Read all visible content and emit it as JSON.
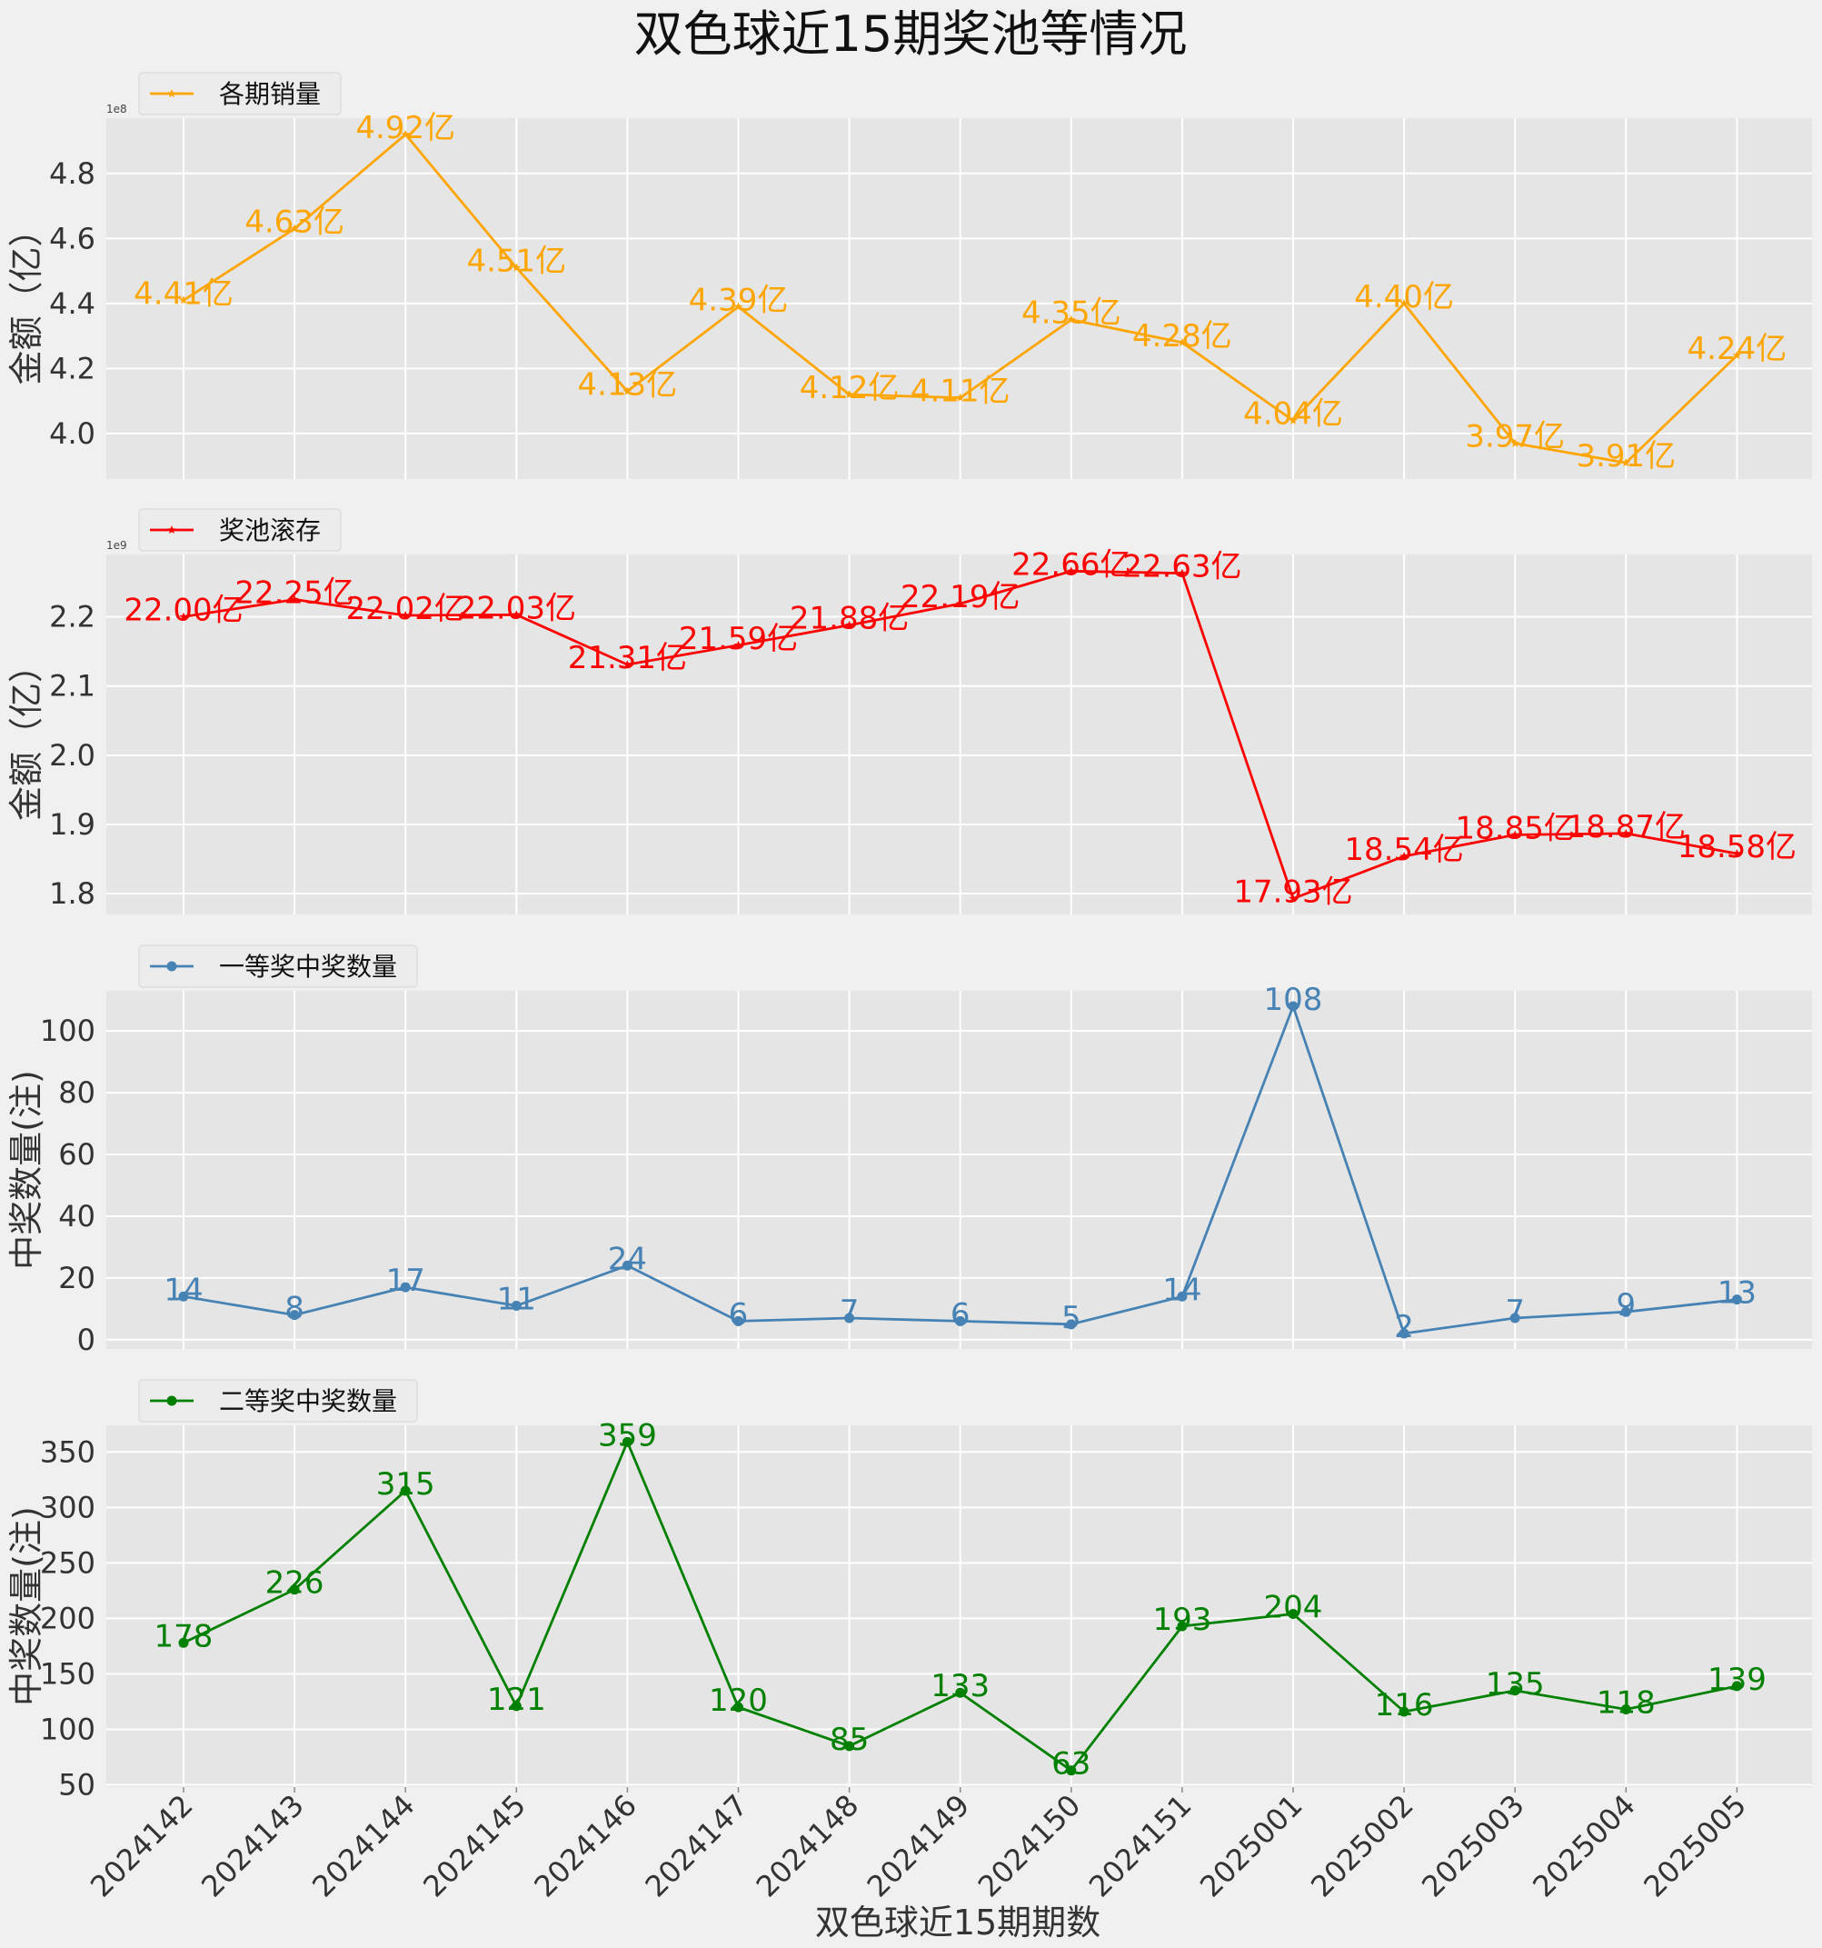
{
  "title": "双色球近15期奖池等情况",
  "xlabel": "双色球近15期期数",
  "chart_data": [
    {
      "type": "line",
      "categories": [
        "2024142",
        "2024143",
        "2024144",
        "2024145",
        "2024146",
        "2024147",
        "2024148",
        "2024149",
        "2024150",
        "2024151",
        "2025001",
        "2025002",
        "2025003",
        "2025004",
        "2025005"
      ],
      "series": [
        {
          "name": "各期销量",
          "color": "#FFA500",
          "marker": "star",
          "values": [
            441000000,
            463000000,
            492000000,
            451000000,
            413000000,
            439000000,
            412000000,
            411000000,
            435000000,
            428000000,
            404000000,
            440000000,
            397000000,
            391000000,
            424000000
          ],
          "labels": [
            "4.41亿",
            "4.63亿",
            "4.92亿",
            "4.51亿",
            "4.13亿",
            "4.39亿",
            "4.12亿",
            "4.11亿",
            "4.35亿",
            "4.28亿",
            "4.04亿",
            "4.40亿",
            "3.97亿",
            "3.91亿",
            "4.24亿"
          ]
        }
      ],
      "ylabel": "金额（亿）",
      "offset_label": "1e8",
      "ylim": [
        386000000,
        497000000
      ],
      "yticks": [
        400000000,
        420000000,
        440000000,
        460000000,
        480000000
      ],
      "ytick_labels": [
        "4.0",
        "4.2",
        "4.4",
        "4.6",
        "4.8"
      ],
      "grid": true,
      "legend": "top-left"
    },
    {
      "type": "line",
      "categories": [
        "2024142",
        "2024143",
        "2024144",
        "2024145",
        "2024146",
        "2024147",
        "2024148",
        "2024149",
        "2024150",
        "2024151",
        "2025001",
        "2025002",
        "2025003",
        "2025004",
        "2025005"
      ],
      "series": [
        {
          "name": "奖池滚存",
          "color": "#FF0000",
          "marker": "star",
          "values": [
            2200000000,
            2225000000,
            2202000000,
            2203000000,
            2131000000,
            2159000000,
            2188000000,
            2219000000,
            2266000000,
            2263000000,
            1793000000,
            1854000000,
            1885000000,
            1887000000,
            1858000000
          ],
          "labels": [
            "22.00亿",
            "22.25亿",
            "22.02亿",
            "22.03亿",
            "21.31亿",
            "21.59亿",
            "21.88亿",
            "22.19亿",
            "22.66亿",
            "22.63亿",
            "17.93亿",
            "18.54亿",
            "18.85亿",
            "18.87亿",
            "18.58亿"
          ]
        }
      ],
      "ylabel": "金额（亿）",
      "offset_label": "1e9",
      "ylim": [
        1770000000,
        2290000000
      ],
      "yticks": [
        1800000000,
        1900000000,
        2000000000,
        2100000000,
        2200000000
      ],
      "ytick_labels": [
        "1.8",
        "1.9",
        "2.0",
        "2.1",
        "2.2"
      ],
      "grid": true,
      "legend": "top-left"
    },
    {
      "type": "line",
      "categories": [
        "2024142",
        "2024143",
        "2024144",
        "2024145",
        "2024146",
        "2024147",
        "2024148",
        "2024149",
        "2024150",
        "2024151",
        "2025001",
        "2025002",
        "2025003",
        "2025004",
        "2025005"
      ],
      "series": [
        {
          "name": "一等奖中奖数量",
          "color": "#4682B4",
          "marker": "circle",
          "values": [
            14,
            8,
            17,
            11,
            24,
            6,
            7,
            6,
            5,
            14,
            108,
            2,
            7,
            9,
            13
          ],
          "labels": [
            "14",
            "8",
            "17",
            "11",
            "24",
            "6",
            "7",
            "6",
            "5",
            "14",
            "108",
            "2",
            "7",
            "9",
            "13"
          ]
        }
      ],
      "ylabel": "中奖数量(注)",
      "ylim": [
        -3,
        113
      ],
      "yticks": [
        0,
        20,
        40,
        60,
        80,
        100
      ],
      "ytick_labels": [
        "0",
        "20",
        "40",
        "60",
        "80",
        "100"
      ],
      "grid": true,
      "legend": "top-left"
    },
    {
      "type": "line",
      "categories": [
        "2024142",
        "2024143",
        "2024144",
        "2024145",
        "2024146",
        "2024147",
        "2024148",
        "2024149",
        "2024150",
        "2024151",
        "2025001",
        "2025002",
        "2025003",
        "2025004",
        "2025005"
      ],
      "series": [
        {
          "name": "二等奖中奖数量",
          "color": "#008000",
          "marker": "circle",
          "values": [
            178,
            226,
            315,
            121,
            359,
            120,
            85,
            133,
            63,
            193,
            204,
            116,
            135,
            118,
            139
          ],
          "labels": [
            "178",
            "226",
            "315",
            "121",
            "359",
            "120",
            "85",
            "133",
            "63",
            "193",
            "204",
            "116",
            "135",
            "118",
            "139"
          ]
        }
      ],
      "ylabel": "中奖数量(注)",
      "ylim": [
        48,
        374
      ],
      "yticks": [
        50,
        100,
        150,
        200,
        250,
        300,
        350
      ],
      "ytick_labels": [
        "50",
        "100",
        "150",
        "200",
        "250",
        "300",
        "350"
      ],
      "grid": true,
      "legend": "top-left"
    }
  ]
}
